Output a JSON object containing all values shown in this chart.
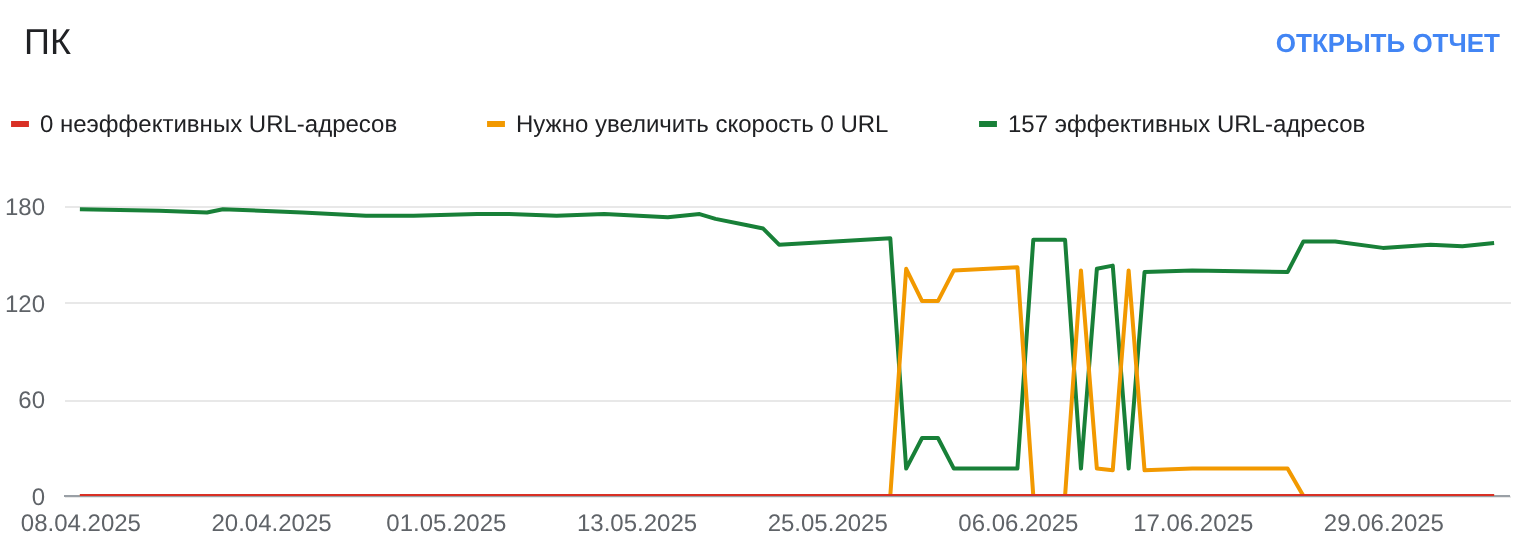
{
  "chart_data": {
    "type": "line",
    "title": "ПК",
    "annotations": [
      "ОТКРЫТЬ ОТЧЕТ"
    ],
    "legend": "top left",
    "grid": "y",
    "xlim": [
      "2025-04-07",
      "2025-07-07"
    ],
    "xticks": [
      {
        "value": "2025-04-08",
        "label": "08.04.2025"
      },
      {
        "value": "2025-04-20",
        "label": "20.04.2025"
      },
      {
        "value": "2025-05-01",
        "label": "01.05.2025"
      },
      {
        "value": "2025-05-13",
        "label": "13.05.2025"
      },
      {
        "value": "2025-05-25",
        "label": "25.05.2025"
      },
      {
        "value": "2025-06-06",
        "label": "06.06.2025"
      },
      {
        "value": "2025-06-17",
        "label": "17.06.2025"
      },
      {
        "value": "2025-06-29",
        "label": "29.06.2025"
      }
    ],
    "ylim": [
      0,
      180
    ],
    "yticks": [
      0,
      60,
      120,
      180
    ],
    "series": [
      {
        "name": "0 неэффективных URL-адресов",
        "color": "#d93025",
        "x": [
          "2025-04-08",
          "2025-07-06"
        ],
        "values": [
          0,
          0
        ]
      },
      {
        "name": "Нужно увеличить скорость 0 URL",
        "color": "#f29900",
        "x": [
          "2025-04-08",
          "2025-05-29",
          "2025-05-30",
          "2025-05-31",
          "2025-06-01",
          "2025-06-02",
          "2025-06-06",
          "2025-06-07",
          "2025-06-09",
          "2025-06-10",
          "2025-06-11",
          "2025-06-12",
          "2025-06-13",
          "2025-06-14",
          "2025-06-17",
          "2025-06-23",
          "2025-06-24",
          "2025-07-06"
        ],
        "values": [
          0,
          0,
          141,
          121,
          121,
          140,
          142,
          0,
          0,
          140,
          17,
          16,
          140,
          16,
          17,
          17,
          0,
          0
        ]
      },
      {
        "name": "157 эффективных URL-адресов",
        "color": "#188038",
        "x": [
          "2025-04-08",
          "2025-04-13",
          "2025-04-16",
          "2025-04-17",
          "2025-04-22",
          "2025-04-26",
          "2025-04-29",
          "2025-05-03",
          "2025-05-05",
          "2025-05-08",
          "2025-05-11",
          "2025-05-15",
          "2025-05-17",
          "2025-05-18",
          "2025-05-20",
          "2025-05-21",
          "2025-05-22",
          "2025-05-29",
          "2025-05-30",
          "2025-05-31",
          "2025-06-01",
          "2025-06-02",
          "2025-06-06",
          "2025-06-07",
          "2025-06-09",
          "2025-06-10",
          "2025-06-11",
          "2025-06-12",
          "2025-06-13",
          "2025-06-14",
          "2025-06-17",
          "2025-06-23",
          "2025-06-24",
          "2025-06-26",
          "2025-06-29",
          "2025-07-02",
          "2025-07-04",
          "2025-07-06"
        ],
        "values": [
          178,
          177,
          176,
          178,
          176,
          174,
          174,
          175,
          175,
          174,
          175,
          173,
          175,
          172,
          168,
          166,
          156,
          160,
          17,
          36,
          36,
          17,
          17,
          159,
          159,
          17,
          141,
          143,
          17,
          139,
          140,
          139,
          158,
          158,
          154,
          156,
          155,
          157
        ]
      }
    ]
  }
}
